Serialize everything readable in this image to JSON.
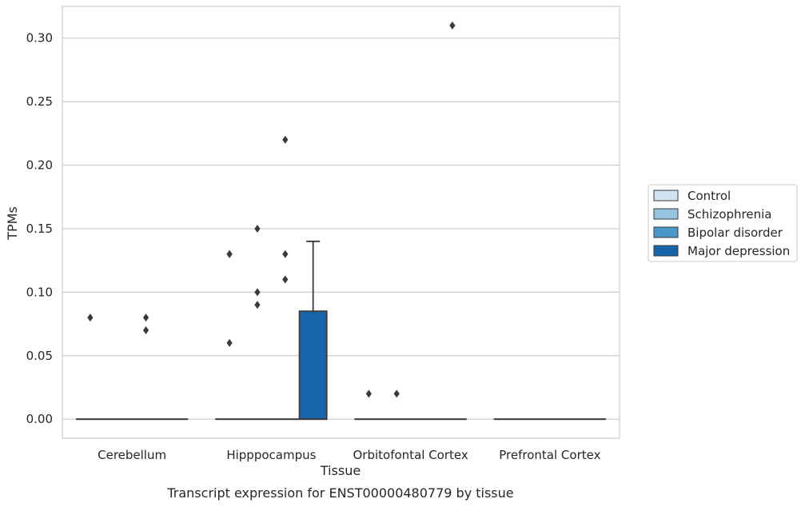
{
  "chart_data": {
    "type": "box",
    "title": "",
    "caption": "Transcript expression for ENST00000480779 by tissue",
    "xlabel": "Tissue",
    "ylabel": "TPMs",
    "ylim": [
      -0.015,
      0.325
    ],
    "yticks": [
      "0.00",
      "0.05",
      "0.10",
      "0.15",
      "0.20",
      "0.25",
      "0.30"
    ],
    "categories": [
      "Cerebellum",
      "Hipppocampus",
      "Orbitofontal Cortex",
      "Prefrontal Cortex"
    ],
    "grid": "horizontal",
    "legend_position": "right",
    "series": [
      {
        "name": "Control",
        "color": "#d0e1f2",
        "boxes": [
          {
            "category": "Cerebellum",
            "q1": 0,
            "median": 0,
            "q3": 0,
            "whisker_low": 0,
            "whisker_high": 0,
            "outliers": [
              0.08
            ]
          },
          {
            "category": "Hipppocampus",
            "q1": 0,
            "median": 0,
            "q3": 0,
            "whisker_low": 0,
            "whisker_high": 0,
            "outliers": [
              0.06,
              0.13,
              0.13
            ]
          },
          {
            "category": "Orbitofontal Cortex",
            "q1": 0,
            "median": 0,
            "q3": 0,
            "whisker_low": 0,
            "whisker_high": 0,
            "outliers": [
              0.02
            ]
          },
          {
            "category": "Prefrontal Cortex",
            "q1": 0,
            "median": 0,
            "q3": 0,
            "whisker_low": 0,
            "whisker_high": 0,
            "outliers": []
          }
        ]
      },
      {
        "name": "Schizophrenia",
        "color": "#94c4df",
        "boxes": [
          {
            "category": "Cerebellum",
            "q1": 0,
            "median": 0,
            "q3": 0,
            "whisker_low": 0,
            "whisker_high": 0,
            "outliers": []
          },
          {
            "category": "Hipppocampus",
            "q1": 0,
            "median": 0,
            "q3": 0,
            "whisker_low": 0,
            "whisker_high": 0,
            "outliers": [
              0.09,
              0.1,
              0.15
            ]
          },
          {
            "category": "Orbitofontal Cortex",
            "q1": 0,
            "median": 0,
            "q3": 0,
            "whisker_low": 0,
            "whisker_high": 0,
            "outliers": [
              0.02
            ]
          },
          {
            "category": "Prefrontal Cortex",
            "q1": 0,
            "median": 0,
            "q3": 0,
            "whisker_low": 0,
            "whisker_high": 0,
            "outliers": []
          }
        ]
      },
      {
        "name": "Bipolar disorder",
        "color": "#4a98c9",
        "boxes": [
          {
            "category": "Cerebellum",
            "q1": 0,
            "median": 0,
            "q3": 0,
            "whisker_low": 0,
            "whisker_high": 0,
            "outliers": [
              0.07,
              0.08
            ]
          },
          {
            "category": "Hipppocampus",
            "q1": 0,
            "median": 0,
            "q3": 0,
            "whisker_low": 0,
            "whisker_high": 0,
            "outliers": [
              0.11,
              0.13,
              0.22
            ]
          },
          {
            "category": "Orbitofontal Cortex",
            "q1": 0,
            "median": 0,
            "q3": 0,
            "whisker_low": 0,
            "whisker_high": 0,
            "outliers": []
          },
          {
            "category": "Prefrontal Cortex",
            "q1": 0,
            "median": 0,
            "q3": 0,
            "whisker_low": 0,
            "whisker_high": 0,
            "outliers": []
          }
        ]
      },
      {
        "name": "Major depression",
        "color": "#1764ab",
        "boxes": [
          {
            "category": "Cerebellum",
            "q1": 0,
            "median": 0,
            "q3": 0,
            "whisker_low": 0,
            "whisker_high": 0,
            "outliers": []
          },
          {
            "category": "Hipppocampus",
            "q1": 0,
            "median": 0,
            "q3": 0.085,
            "whisker_low": 0,
            "whisker_high": 0.14,
            "outliers": []
          },
          {
            "category": "Orbitofontal Cortex",
            "q1": 0,
            "median": 0,
            "q3": 0,
            "whisker_low": 0,
            "whisker_high": 0,
            "outliers": [
              0.31
            ]
          },
          {
            "category": "Prefrontal Cortex",
            "q1": 0,
            "median": 0,
            "q3": 0,
            "whisker_low": 0,
            "whisker_high": 0,
            "outliers": []
          }
        ]
      }
    ]
  }
}
